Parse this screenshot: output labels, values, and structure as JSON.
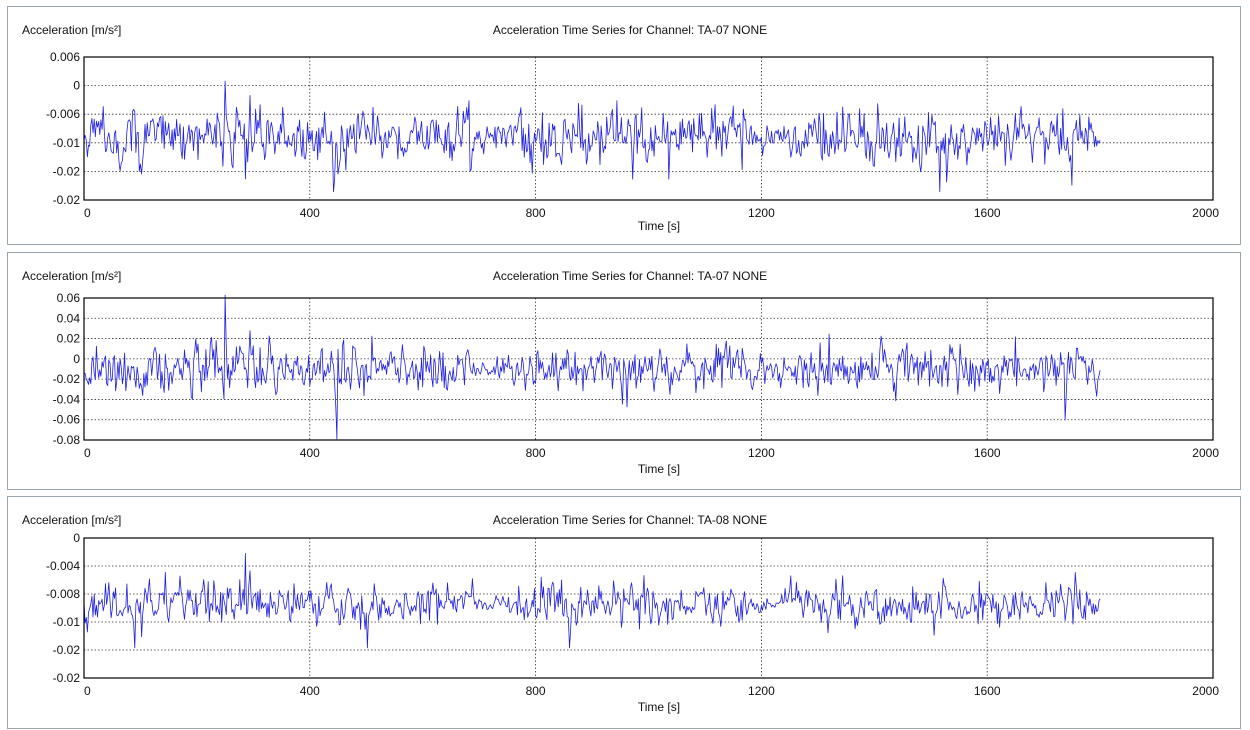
{
  "colors": {
    "series": "#1f1fe0",
    "grid": "#333333",
    "frame": "#000000",
    "panel_border": "#9aa6b2"
  },
  "chart_data": [
    {
      "type": "line",
      "title": "Acceleration Time Series for Channel: TA-07 NONE",
      "ylabel": "Acceleration [m/s²]",
      "xlabel": "Time [s]",
      "xlim": [
        0,
        2000
      ],
      "ylim": [
        -0.02,
        0.006
      ],
      "x_ticks": [
        "0",
        "400",
        "800",
        "1200",
        "1600",
        "2000"
      ],
      "y_ticks": [
        "0.006",
        "0",
        "-0.006",
        "-0.01",
        "-0.02",
        "-0.02"
      ],
      "grid": true,
      "series": [
        {
          "x_range": [
            0,
            1800
          ],
          "sample_step": 2,
          "center": -0.0085,
          "max": 0.0016,
          "min": -0.0185,
          "typical_envelope": 0.006,
          "bursts": [
            [
              250,
              0.0095
            ],
            [
              440,
              0.0105
            ],
            [
              510,
              0.009
            ],
            [
              1115,
              0.0085
            ],
            [
              1310,
              0.0085
            ],
            [
              1650,
              0.0085
            ],
            [
              1750,
              0.009
            ]
          ]
        }
      ]
    },
    {
      "type": "line",
      "title": "Acceleration Time Series for Channel: TA-07 NONE",
      "ylabel": "Acceleration [m/s²]",
      "xlabel": "Time [s]",
      "xlim": [
        0,
        2000
      ],
      "ylim": [
        -0.08,
        0.06
      ],
      "x_ticks": [
        "0",
        "400",
        "800",
        "1200",
        "1600",
        "2000"
      ],
      "y_ticks": [
        "0.06",
        "0.04",
        "0.02",
        "0",
        "-0.02",
        "-0.04",
        "-0.06",
        "-0.08"
      ],
      "grid": true,
      "series": [
        {
          "x_range": [
            0,
            1800
          ],
          "sample_step": 2,
          "center": -0.01,
          "max": 0.063,
          "min": -0.079,
          "typical_envelope": 0.028,
          "bursts": [
            [
              250,
              0.05
            ],
            [
              445,
              0.07
            ],
            [
              1110,
              0.055
            ],
            [
              1320,
              0.05
            ],
            [
              1650,
              0.06
            ],
            [
              1740,
              0.05
            ]
          ]
        }
      ]
    },
    {
      "type": "line",
      "title": "Acceleration Time Series for Channel: TA-08 NONE",
      "ylabel": "Acceleration [m/s²]",
      "xlabel": "Time [s]",
      "xlim": [
        0,
        2000
      ],
      "ylim": [
        -0.02,
        0
      ],
      "x_ticks": [
        "0",
        "400",
        "800",
        "1200",
        "1600",
        "2000"
      ],
      "y_ticks": [
        "0",
        "-0.004",
        "-0.008",
        "-0.01",
        "-0.02",
        "-0.02"
      ],
      "grid": true,
      "series": [
        {
          "x_range": [
            0,
            1800
          ],
          "sample_step": 2,
          "center": -0.0094,
          "max": -0.0022,
          "min": -0.0157,
          "typical_envelope": 0.0035,
          "bursts": [
            [
              285,
              0.007
            ],
            [
              500,
              0.005
            ],
            [
              860,
              0.005
            ],
            [
              1115,
              0.006
            ],
            [
              1620,
              0.005
            ]
          ]
        }
      ]
    }
  ]
}
